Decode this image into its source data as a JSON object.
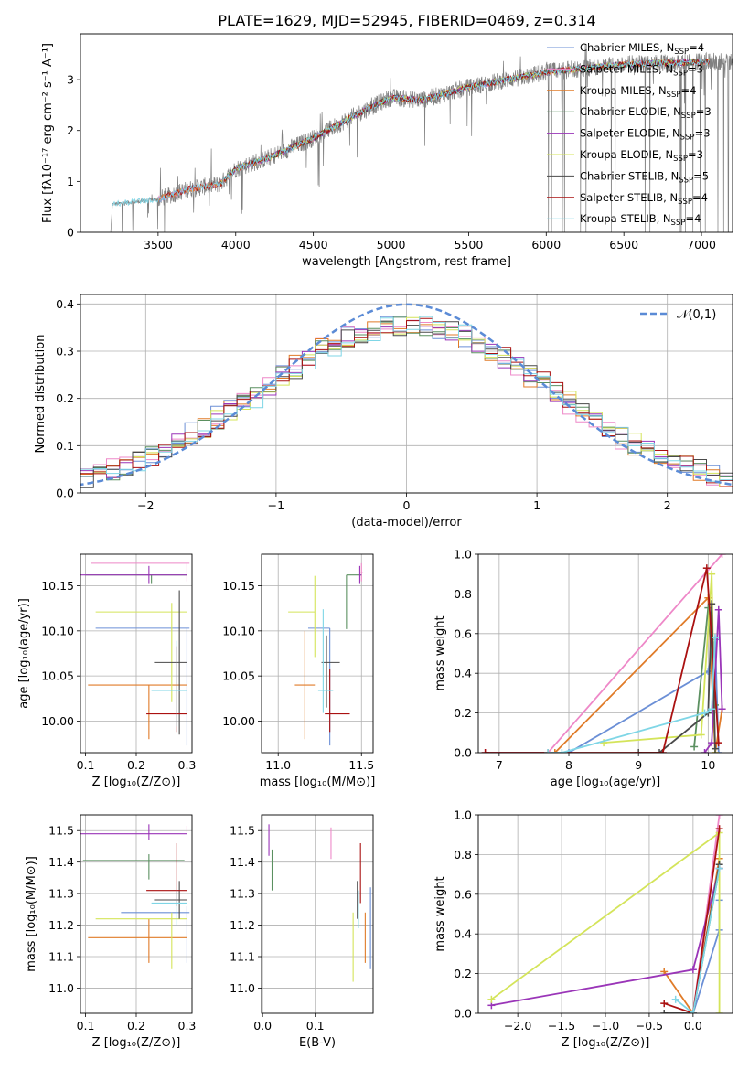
{
  "figure": {
    "title": "PLATE=1629, MJD=52945, FIBERID=0469, z=0.314",
    "panels": {
      "spectrum": {
        "xlabel": "wavelength [Angstrom, rest frame]",
        "ylabel": "Flux [fλ10⁻¹⁷ erg cm⁻² s⁻¹ A⁻¹]"
      },
      "residuals": {
        "xlabel": "(data-model)/error",
        "ylabel": "Normed distribution",
        "legend": "𝒩(0,1)"
      },
      "age_z": {
        "xlabel": "Z [log₁₀(Z/Z⊙)]",
        "ylabel": "age  [log₁₀(age/yr)]"
      },
      "age_mass": {
        "xlabel": "mass [log₁₀(M/M⊙)]"
      },
      "weight_age": {
        "xlabel": "age  [log₁₀(age/yr)]",
        "ylabel": "mass weight"
      },
      "mass_z": {
        "xlabel": "Z [log₁₀(Z/Z⊙)]",
        "ylabel": "mass [log₁₀(M/M⊙)]"
      },
      "mass_ebv": {
        "xlabel": "E(B-V)"
      },
      "weight_z": {
        "xlabel": "Z [log₁₀(Z/Z⊙)]",
        "ylabel": "mass weight"
      }
    }
  },
  "models": [
    {
      "name": "Chabrier MILES",
      "nssp": "4",
      "color": "#6b8fd6"
    },
    {
      "name": "Salpeter MILES",
      "nssp": "3",
      "color": "#ee88c8"
    },
    {
      "name": "Kroupa MILES",
      "nssp": "4",
      "color": "#e07b28"
    },
    {
      "name": "Chabrier ELODIE",
      "nssp": "3",
      "color": "#5b9060"
    },
    {
      "name": "Salpeter ELODIE",
      "nssp": "3",
      "color": "#9a35b8"
    },
    {
      "name": "Kroupa ELODIE",
      "nssp": "3",
      "color": "#d4e45a"
    },
    {
      "name": "Chabrier STELIB",
      "nssp": "5",
      "color": "#4a4a4a"
    },
    {
      "name": "Salpeter STELIB",
      "nssp": "4",
      "color": "#aa1111"
    },
    {
      "name": "Kroupa STELIB",
      "nssp": "4",
      "color": "#7fd6e6"
    }
  ],
  "chart_data": [
    {
      "id": "spectrum",
      "type": "line",
      "title": "PLATE=1629, MJD=52945, FIBERID=0469, z=0.314",
      "xlabel": "wavelength [Angstrom, rest frame]",
      "ylabel": "Flux [fλ10⁻¹⁷ erg cm⁻² s⁻¹ A⁻¹]",
      "xlim": [
        3000,
        7200
      ],
      "ylim": [
        0,
        3.9
      ],
      "xticks": [
        3500,
        4000,
        4500,
        5000,
        5500,
        6000,
        6500,
        7000
      ],
      "yticks": [
        0,
        1,
        2,
        3
      ],
      "continuum_x": [
        3200,
        3500,
        3700,
        3900,
        4000,
        4200,
        4500,
        4800,
        5000,
        5200,
        5500,
        6000,
        6500,
        7000
      ],
      "continuum_y": [
        0.55,
        0.65,
        0.85,
        0.95,
        1.25,
        1.45,
        1.85,
        2.35,
        2.65,
        2.6,
        2.85,
        3.15,
        3.3,
        3.35
      ],
      "legend": "top-right",
      "grid": false
    },
    {
      "id": "residuals",
      "type": "line",
      "xlabel": "(data-model)/error",
      "ylabel": "Normed distribution",
      "xlim": [
        -2.5,
        2.5
      ],
      "ylim": [
        0,
        0.42
      ],
      "xticks": [
        -2,
        -1,
        0,
        1,
        2
      ],
      "yticks": [
        0.0,
        0.1,
        0.2,
        0.3,
        0.4
      ],
      "reference": {
        "name": "𝒩(0,1)",
        "mean": 0,
        "sigma": 1
      },
      "hist_sigma": 1.12,
      "legend": "top-right",
      "grid": true
    },
    {
      "id": "age_z",
      "type": "scatter",
      "xlabel": "Z [log₁₀(Z/Z⊙)]",
      "ylabel": "age  [log₁₀(age/yr)]",
      "xlim": [
        0.09,
        0.31
      ],
      "ylim": [
        9.965,
        10.185
      ],
      "xticks": [
        0.1,
        0.2,
        0.3
      ],
      "yticks": [
        10.0,
        10.05,
        10.1,
        10.15
      ],
      "grid": true,
      "points": [
        {
          "x": 0.3,
          "xerr": [
            0.18,
            0.005
          ],
          "y": 10.103,
          "yerr": [
            0.13,
            0.0
          ]
        },
        {
          "x": 0.3,
          "xerr": [
            0.19,
            0.005
          ],
          "y": 10.175,
          "yerr": [
            0.02,
            0.0
          ]
        },
        {
          "x": 0.225,
          "xerr": [
            0.12,
            0.075
          ],
          "y": 10.04,
          "yerr": [
            0.06,
            0.0
          ]
        },
        {
          "x": 0.23,
          "xerr": [
            0.13,
            0.07
          ],
          "y": 10.162,
          "yerr": [
            0.01,
            0.0
          ]
        },
        {
          "x": 0.225,
          "xerr": [
            0.14,
            0.075
          ],
          "y": 10.162,
          "yerr": [
            0.01,
            0.01
          ]
        },
        {
          "x": 0.27,
          "xerr": [
            0.15,
            0.03
          ],
          "y": 10.121,
          "yerr": [
            0.1,
            0.01
          ]
        },
        {
          "x": 0.285,
          "xerr": [
            0.05,
            0.015
          ],
          "y": 10.065,
          "yerr": [
            0.08,
            0.08
          ]
        },
        {
          "x": 0.28,
          "xerr": [
            0.06,
            0.02
          ],
          "y": 10.008,
          "yerr": [
            0.02,
            0.075
          ]
        },
        {
          "x": 0.28,
          "xerr": [
            0.05,
            0.02
          ],
          "y": 10.034,
          "yerr": [
            0.04,
            0.055
          ]
        }
      ]
    },
    {
      "id": "age_mass",
      "type": "scatter",
      "xlabel": "mass [log₁₀(M/M⊙)]",
      "xlim": [
        10.9,
        11.57
      ],
      "ylim": [
        9.965,
        10.185
      ],
      "xticks": [
        11.0,
        11.5
      ],
      "yticks": [
        10.0,
        10.05,
        10.1,
        10.15
      ],
      "grid": true,
      "points": [
        {
          "x": 11.31,
          "xerr": [
            0.13,
            0.0
          ],
          "y": 10.103,
          "yerr": [
            0.13,
            0.0
          ]
        },
        {
          "x": 11.5,
          "xerr": [
            0.01,
            0.01
          ],
          "y": 10.165,
          "yerr": [
            0.01,
            0.01
          ]
        },
        {
          "x": 11.16,
          "xerr": [
            0.06,
            0.06
          ],
          "y": 10.04,
          "yerr": [
            0.06,
            0.06
          ]
        },
        {
          "x": 11.41,
          "xerr": [
            0.0,
            0.09
          ],
          "y": 10.162,
          "yerr": [
            0.06,
            0.0
          ]
        },
        {
          "x": 11.49,
          "xerr": [
            0.0,
            0.01
          ],
          "y": 10.162,
          "yerr": [
            0.01,
            0.01
          ]
        },
        {
          "x": 11.22,
          "xerr": [
            0.16,
            0.0
          ],
          "y": 10.121,
          "yerr": [
            0.05,
            0.04
          ]
        },
        {
          "x": 11.29,
          "xerr": [
            0.03,
            0.08
          ],
          "y": 10.065,
          "yerr": [
            0.05,
            0.03
          ]
        },
        {
          "x": 11.31,
          "xerr": [
            0.03,
            0.12
          ],
          "y": 10.008,
          "yerr": [
            0.02,
            0.05
          ]
        },
        {
          "x": 11.27,
          "xerr": [
            0.03,
            0.06
          ],
          "y": 10.034,
          "yerr": [
            0.025,
            0.09
          ]
        }
      ]
    },
    {
      "id": "weight_age",
      "type": "line",
      "xlabel": "age  [log₁₀(age/yr)]",
      "ylabel": "mass weight",
      "xlim": [
        6.7,
        10.35
      ],
      "ylim": [
        0,
        1.0
      ],
      "xticks": [
        7,
        8,
        9,
        10
      ],
      "yticks": [
        0.0,
        0.2,
        0.4,
        0.6,
        0.8,
        1.0
      ],
      "grid": true,
      "series": [
        {
          "x": [
            7.7,
            8.0,
            10.0,
            10.1,
            10.15
          ],
          "y": [
            0.0,
            0.0,
            0.41,
            0.57,
            0.0
          ]
        },
        {
          "x": [
            6.8,
            7.7,
            10.2
          ],
          "y": [
            0.0,
            0.0,
            1.0
          ]
        },
        {
          "x": [
            7.7,
            7.8,
            10.0,
            10.1,
            10.2
          ],
          "y": [
            0.0,
            0.0,
            0.78,
            0.0,
            0.22
          ]
        },
        {
          "x": [
            9.8,
            10.0,
            10.1
          ],
          "y": [
            0.03,
            0.73,
            0.24
          ]
        },
        {
          "x": [
            9.95,
            10.05,
            10.15,
            10.2
          ],
          "y": [
            0.0,
            0.05,
            0.72,
            0.22
          ]
        },
        {
          "x": [
            8.5,
            9.9,
            10.05,
            10.1
          ],
          "y": [
            0.05,
            0.09,
            0.9,
            0.0
          ]
        },
        {
          "x": [
            9.0,
            9.3,
            10.0,
            10.05,
            10.1
          ],
          "y": [
            0.0,
            0.0,
            0.2,
            0.75,
            0.02
          ]
        },
        {
          "x": [
            6.8,
            9.35,
            9.98,
            10.15
          ],
          "y": [
            0.0,
            0.0,
            0.93,
            0.05
          ]
        },
        {
          "x": [
            7.7,
            7.9,
            9.95,
            10.05,
            10.1
          ],
          "y": [
            0.0,
            0.0,
            0.2,
            0.22,
            0.58
          ]
        }
      ]
    },
    {
      "id": "mass_z",
      "type": "scatter",
      "xlabel": "Z [log₁₀(Z/Z⊙)]",
      "ylabel": "mass [log₁₀(M/M⊙)]",
      "xlim": [
        0.09,
        0.31
      ],
      "ylim": [
        10.92,
        11.55
      ],
      "xticks": [
        0.1,
        0.2,
        0.3
      ],
      "yticks": [
        11.0,
        11.1,
        11.2,
        11.3,
        11.4,
        11.5
      ],
      "grid": true,
      "points": [
        {
          "x": 0.3,
          "xerr": [
            0.13,
            0.005
          ],
          "y": 11.24,
          "yerr": [
            0.16,
            0.02
          ]
        },
        {
          "x": 0.3,
          "xerr": [
            0.16,
            0.005
          ],
          "y": 11.505,
          "yerr": [
            0.01,
            0.01
          ]
        },
        {
          "x": 0.225,
          "xerr": [
            0.12,
            0.075
          ],
          "y": 11.16,
          "yerr": [
            0.08,
            0.06
          ]
        },
        {
          "x": 0.225,
          "xerr": [
            0.13,
            0.07
          ],
          "y": 11.405,
          "yerr": [
            0.06,
            0.02
          ]
        },
        {
          "x": 0.225,
          "xerr": [
            0.14,
            0.075
          ],
          "y": 11.49,
          "yerr": [
            0.02,
            0.03
          ]
        },
        {
          "x": 0.27,
          "xerr": [
            0.15,
            0.03
          ],
          "y": 11.22,
          "yerr": [
            0.16,
            0.02
          ]
        },
        {
          "x": 0.285,
          "xerr": [
            0.05,
            0.015
          ],
          "y": 11.28,
          "yerr": [
            0.06,
            0.06
          ]
        },
        {
          "x": 0.28,
          "xerr": [
            0.06,
            0.02
          ],
          "y": 11.31,
          "yerr": [
            0.05,
            0.15
          ]
        },
        {
          "x": 0.28,
          "xerr": [
            0.05,
            0.02
          ],
          "y": 11.27,
          "yerr": [
            0.07,
            0.04
          ]
        }
      ]
    },
    {
      "id": "mass_ebv",
      "type": "scatter",
      "xlabel": "E(B-V)",
      "xlim": [
        -0.002,
        0.21
      ],
      "ylim": [
        10.92,
        11.55
      ],
      "xticks": [
        0.0,
        0.1
      ],
      "yticks": [
        11.0,
        11.1,
        11.2,
        11.3,
        11.4,
        11.5
      ],
      "grid": true,
      "points": [
        {
          "x": 0.205,
          "xerr": [
            0,
            0
          ],
          "y": 11.22,
          "yerr": [
            0.16,
            0.1
          ]
        },
        {
          "x": 0.13,
          "xerr": [
            0,
            0
          ],
          "y": 11.46,
          "yerr": [
            0.05,
            0.05
          ]
        },
        {
          "x": 0.195,
          "xerr": [
            0,
            0
          ],
          "y": 11.16,
          "yerr": [
            0.08,
            0.08
          ]
        },
        {
          "x": 0.018,
          "xerr": [
            0,
            0
          ],
          "y": 11.37,
          "yerr": [
            0.06,
            0.07
          ]
        },
        {
          "x": 0.012,
          "xerr": [
            0,
            0
          ],
          "y": 11.47,
          "yerr": [
            0.05,
            0.05
          ]
        },
        {
          "x": 0.172,
          "xerr": [
            0,
            0
          ],
          "y": 11.14,
          "yerr": [
            0.12,
            0.1
          ]
        },
        {
          "x": 0.18,
          "xerr": [
            0,
            0
          ],
          "y": 11.28,
          "yerr": [
            0.06,
            0.06
          ]
        },
        {
          "x": 0.186,
          "xerr": [
            0,
            0
          ],
          "y": 11.35,
          "yerr": [
            0.08,
            0.11
          ]
        },
        {
          "x": 0.182,
          "xerr": [
            0,
            0
          ],
          "y": 11.25,
          "yerr": [
            0.06,
            0.06
          ]
        }
      ]
    },
    {
      "id": "weight_z",
      "type": "line",
      "xlabel": "Z [log₁₀(Z/Z⊙)]",
      "ylabel": "mass weight",
      "xlim": [
        -2.45,
        0.45
      ],
      "ylim": [
        0,
        1.0
      ],
      "xticks": [
        -2.0,
        -1.5,
        -1.0,
        -0.5,
        0.0
      ],
      "yticks": [
        0.0,
        0.2,
        0.4,
        0.6,
        0.8,
        1.0
      ],
      "grid": true,
      "series": [
        {
          "x": [
            0.0,
            0.3,
            0.3
          ],
          "y": [
            0.0,
            0.42,
            0.57
          ]
        },
        {
          "x": [
            0.0,
            0.3
          ],
          "y": [
            0.0,
            1.0
          ]
        },
        {
          "x": [
            -0.33,
            0.0,
            0.3
          ],
          "y": [
            0.21,
            0.0,
            0.78
          ]
        },
        {
          "x": [
            0.0,
            0.3
          ],
          "y": [
            0.0,
            0.73
          ]
        },
        {
          "x": [
            -2.3,
            0.0,
            0.3
          ],
          "y": [
            0.04,
            0.22,
            0.73
          ]
        },
        {
          "x": [
            -2.3,
            0.3,
            0.3
          ],
          "y": [
            0.07,
            0.91,
            0.0
          ]
        },
        {
          "x": [
            -0.33,
            0.0,
            0.3
          ],
          "y": [
            0.0,
            0.0,
            0.75
          ]
        },
        {
          "x": [
            -0.33,
            0.0,
            0.3
          ],
          "y": [
            0.05,
            0.0,
            0.93
          ]
        },
        {
          "x": [
            -0.2,
            0.0,
            0.3
          ],
          "y": [
            0.07,
            0.0,
            0.73
          ]
        }
      ]
    }
  ]
}
